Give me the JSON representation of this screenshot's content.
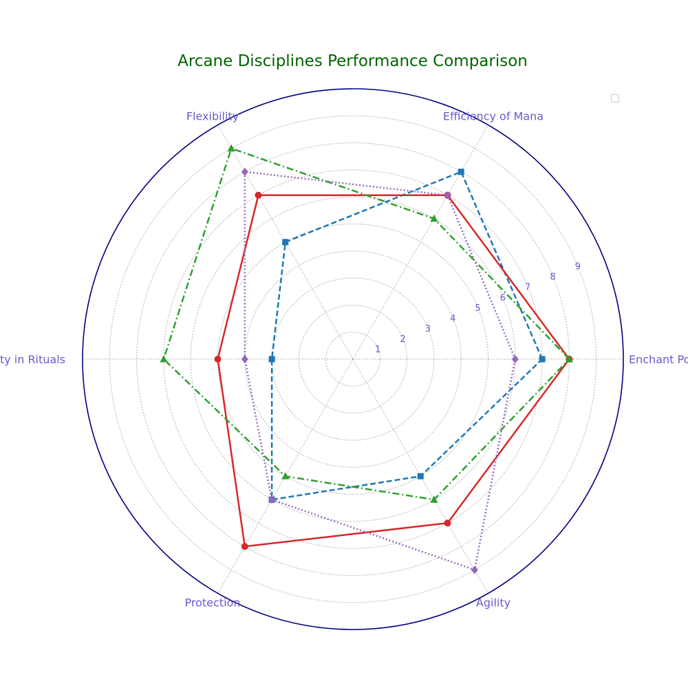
{
  "chart_data": {
    "type": "radar",
    "title": "Arcane Disciplines Performance Comparison",
    "axes": [
      "Enchant Power",
      "Efficiency of Mana",
      "Flexibility",
      "Complexity in Rituals",
      "Protection",
      "Agility"
    ],
    "radial_ticks": [
      "1",
      "2",
      "3",
      "4",
      "5",
      "6",
      "7",
      "8",
      "9"
    ],
    "rlim": [
      0,
      10
    ],
    "grid": true,
    "legend": "top-right (empty)",
    "series": [
      {
        "values": [
          7,
          8,
          5,
          3,
          6,
          5
        ],
        "color": "#1f77b4",
        "linestyle": "dashed",
        "marker": "square"
      },
      {
        "values": [
          8,
          7,
          7,
          5,
          8,
          7
        ],
        "color": "#d62728",
        "linestyle": "solid",
        "marker": "circle"
      },
      {
        "values": [
          8,
          6,
          9,
          7,
          5,
          6
        ],
        "color": "#2ca02c",
        "linestyle": "dashdot",
        "marker": "triangle"
      },
      {
        "values": [
          6,
          7,
          8,
          4,
          6,
          9
        ],
        "color": "#9467bd",
        "linestyle": "dotted",
        "marker": "diamond"
      }
    ],
    "colors": {
      "title": "#006400",
      "labels": "#6a5acd",
      "outer_circle": "#000080",
      "grid": "#b0b0b0"
    }
  }
}
